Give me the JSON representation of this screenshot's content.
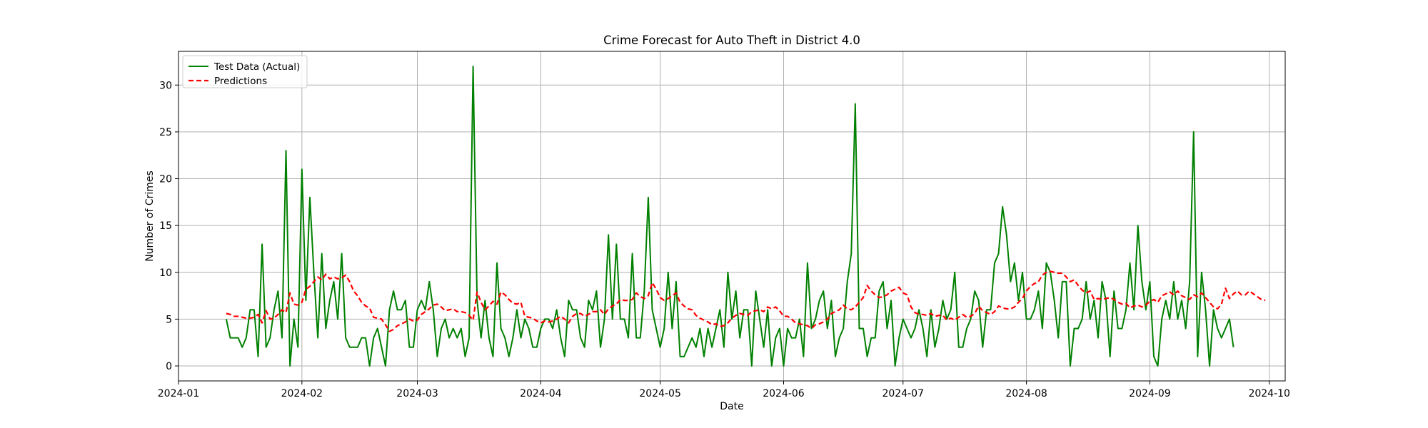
{
  "chart_data": {
    "type": "line",
    "title": "Crime Forecast for Auto Theft in District 4.0",
    "xlabel": "Date",
    "ylabel": "Number of Crimes",
    "xlim": [
      "2024-01-01",
      "2024-10-05"
    ],
    "ylim": [
      -1.6,
      33.6
    ],
    "grid": true,
    "legend_position": "top-left",
    "x_ticks": [
      "2024-01",
      "2024-02",
      "2024-03",
      "2024-04",
      "2024-05",
      "2024-06",
      "2024-07",
      "2024-08",
      "2024-09",
      "2024-10"
    ],
    "x_tick_dates": [
      "2024-01-01",
      "2024-02-01",
      "2024-03-01",
      "2024-04-01",
      "2024-05-01",
      "2024-06-01",
      "2024-07-01",
      "2024-08-01",
      "2024-09-01",
      "2024-10-01"
    ],
    "y_ticks": [
      0,
      5,
      10,
      15,
      20,
      25,
      30
    ],
    "start_date": "2024-01-13",
    "series": [
      {
        "name": "Test Data (Actual)",
        "color": "#008000",
        "style": "solid",
        "values": [
          5,
          3,
          3,
          3,
          2,
          3,
          6,
          6,
          1,
          13,
          2,
          3,
          6,
          8,
          3,
          23,
          0,
          5,
          2,
          21,
          7,
          18,
          10,
          3,
          12,
          4,
          7,
          9,
          5,
          12,
          3,
          2,
          2,
          2,
          3,
          3,
          0,
          3,
          4,
          2,
          0,
          6,
          8,
          6,
          6,
          7,
          2,
          2,
          6,
          7,
          6,
          9,
          6,
          1,
          4,
          5,
          3,
          4,
          3,
          4,
          1,
          3,
          32,
          7,
          3,
          7,
          3,
          1,
          11,
          4,
          3,
          1,
          3,
          6,
          3,
          5,
          4,
          2,
          2,
          4,
          5,
          5,
          4,
          6,
          3,
          1,
          7,
          6,
          6,
          3,
          2,
          7,
          6,
          8,
          2,
          5,
          14,
          5,
          13,
          5,
          5,
          3,
          12,
          3,
          3,
          8,
          18,
          6,
          4,
          2,
          4,
          10,
          4,
          9,
          1,
          1,
          2,
          3,
          2,
          4,
          1,
          4,
          2,
          4,
          6,
          2,
          10,
          5,
          8,
          3,
          6,
          6,
          0,
          8,
          5,
          2,
          6,
          0,
          3,
          4,
          0,
          4,
          3,
          3,
          5,
          1,
          11,
          4,
          5,
          7,
          8,
          4,
          7,
          1,
          3,
          4,
          9,
          12,
          28,
          4,
          4,
          1,
          3,
          3,
          8,
          9,
          4,
          7,
          0,
          3,
          5,
          4,
          3,
          4,
          6,
          4,
          1,
          6,
          2,
          4,
          7,
          5,
          6,
          10,
          2,
          2,
          4,
          5,
          8,
          7,
          2,
          6,
          6,
          11,
          12,
          17,
          14,
          9,
          11,
          7,
          10,
          5,
          5,
          6,
          8,
          4,
          11,
          10,
          7,
          3,
          9,
          9,
          0,
          4,
          4,
          5,
          9,
          5,
          7,
          3,
          9,
          7,
          1,
          8,
          4,
          4,
          6,
          11,
          6,
          15,
          9,
          6,
          9,
          1,
          0,
          5,
          7,
          5,
          9,
          5,
          7,
          4,
          9,
          25,
          1,
          10,
          6,
          0,
          6,
          4,
          3,
          4,
          5,
          2
        ]
      },
      {
        "name": "Predictions",
        "color": "#ff0000",
        "style": "dashed",
        "values": [
          5.6,
          5.5,
          5.3,
          5.3,
          5.2,
          5.1,
          5.1,
          5.2,
          5.5,
          4.6,
          5.9,
          5.0,
          5.1,
          5.5,
          6.0,
          5.7,
          7.8,
          6.6,
          6.5,
          6.8,
          8.2,
          8.5,
          9.0,
          9.5,
          9.2,
          9.8,
          9.3,
          9.5,
          9.3,
          9.4,
          9.7,
          9.0,
          8.0,
          7.5,
          6.8,
          6.4,
          6.2,
          5.2,
          5.1,
          5.0,
          4.4,
          3.7,
          3.9,
          4.3,
          4.5,
          4.7,
          5.0,
          4.8,
          4.9,
          5.5,
          5.8,
          6.1,
          6.5,
          6.6,
          6.3,
          5.9,
          6.0,
          6.1,
          5.8,
          5.8,
          5.7,
          5.4,
          4.9,
          7.9,
          6.8,
          6.0,
          6.4,
          6.9,
          6.6,
          7.9,
          7.6,
          7.1,
          6.7,
          6.6,
          6.8,
          5.3,
          5.2,
          5.1,
          4.8,
          4.6,
          4.8,
          4.7,
          4.8,
          5.0,
          5.3,
          5.0,
          4.6,
          5.3,
          5.6,
          5.6,
          5.3,
          5.5,
          5.8,
          5.8,
          6.0,
          5.5,
          6.1,
          6.4,
          6.6,
          7.1,
          7.0,
          7.0,
          7.1,
          7.8,
          7.4,
          7.2,
          7.5,
          8.9,
          8.2,
          7.3,
          7.0,
          7.2,
          7.5,
          7.8,
          6.8,
          6.4,
          6.1,
          6.0,
          5.4,
          5.1,
          4.9,
          4.7,
          4.4,
          4.5,
          4.2,
          4.3,
          4.6,
          5.1,
          5.4,
          5.6,
          5.5,
          5.4,
          5.8,
          5.9,
          6.0,
          5.8,
          6.3,
          6.1,
          6.3,
          5.9,
          5.3,
          5.3,
          5.0,
          4.6,
          4.5,
          4.4,
          4.3,
          4.0,
          4.4,
          4.5,
          4.7,
          5.0,
          5.6,
          5.8,
          6.0,
          6.5,
          6.1,
          6.0,
          6.3,
          6.8,
          7.3,
          8.6,
          8.0,
          7.6,
          7.3,
          7.4,
          7.6,
          8.0,
          8.2,
          8.4,
          7.8,
          7.6,
          6.3,
          5.7,
          5.5,
          5.5,
          5.4,
          5.6,
          5.3,
          5.4,
          5.4,
          4.9,
          5.1,
          4.9,
          5.2,
          5.5,
          5.2,
          5.3,
          5.6,
          6.4,
          5.9,
          5.7,
          5.5,
          5.8,
          6.4,
          6.2,
          6.1,
          6.1,
          6.3,
          6.8,
          7.2,
          8.0,
          8.5,
          8.8,
          9.0,
          9.7,
          10.0,
          10.1,
          10.0,
          9.9,
          9.9,
          9.5,
          9.0,
          9.2,
          8.6,
          8.1,
          7.8,
          8.0,
          7.1,
          7.2,
          7.1,
          7.2,
          7.3,
          7.1,
          6.8,
          6.6,
          6.7,
          6.2,
          6.4,
          6.5,
          6.3,
          6.5,
          6.9,
          7.1,
          6.8,
          7.5,
          7.7,
          7.9,
          7.6,
          8.0,
          7.5,
          7.3,
          7.1,
          7.6,
          7.4,
          7.8,
          7.3,
          6.8,
          6.3,
          6.1,
          6.6,
          8.3,
          7.2,
          7.7,
          8.0,
          7.6,
          7.6,
          8.0,
          7.7,
          7.4,
          7.1,
          7.0
        ]
      }
    ]
  }
}
